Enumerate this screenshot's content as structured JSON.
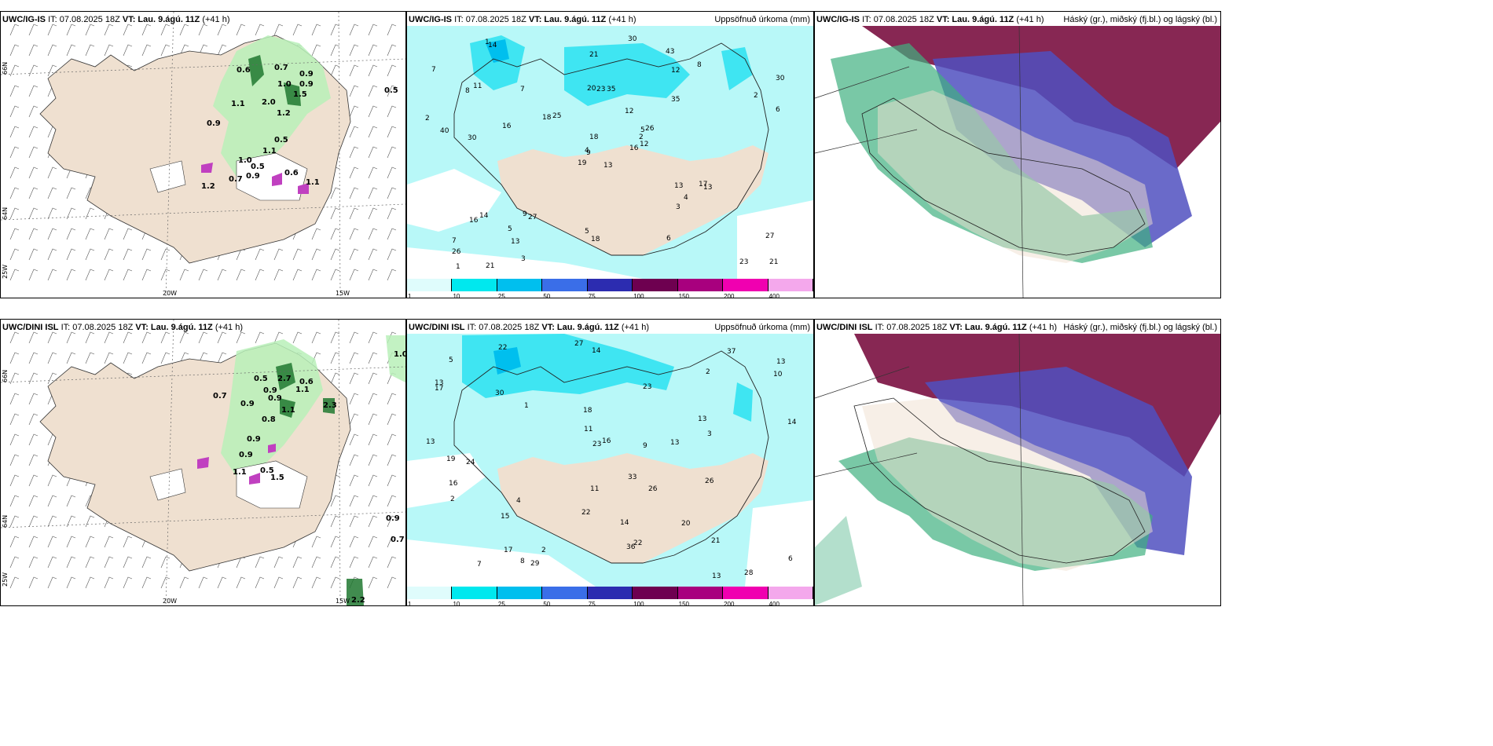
{
  "panels": [
    {
      "title_model": "UWC/IG-IS",
      "title_it": "IT: 07.08.2025 18Z",
      "title_vt_label": "VT:",
      "title_vt": "Lau. 9.ágú. 11Z",
      "title_lead": "(+41 h)",
      "right_title": ""
    },
    {
      "title_model": "UWC/IG-IS",
      "title_it": "IT: 07.08.2025 18Z",
      "title_vt_label": "VT:",
      "title_vt": "Lau. 9.ágú. 11Z",
      "title_lead": "(+41 h)",
      "right_title": "Uppsöfnuð úrkoma (mm)"
    },
    {
      "title_model": "UWC/IG-IS",
      "title_it": "IT: 07.08.2025 18Z",
      "title_vt_label": "VT:",
      "title_vt": "Lau. 9.ágú. 11Z",
      "title_lead": "(+41 h)",
      "right_title": "Háský (gr.), miðský (fj.bl.) og lágský (bl.)"
    },
    {
      "title_model": "UWC/DINI ISL",
      "title_it": "IT: 07.08.2025 18Z",
      "title_vt_label": "VT:",
      "title_vt": "Lau. 9.ágú. 11Z",
      "title_lead": "(+41 h)",
      "right_title": ""
    },
    {
      "title_model": "UWC/DINI ISL",
      "title_it": "IT: 07.08.2025 18Z",
      "title_vt_label": "VT:",
      "title_vt": "Lau. 9.ágú. 11Z",
      "title_lead": "(+41 h)",
      "right_title": "Uppsöfnuð úrkoma (mm)"
    },
    {
      "title_model": "UWC/DINI ISL",
      "title_it": "IT: 07.08.2025 18Z",
      "title_vt_label": "VT:",
      "title_vt": "Lau. 9.ágú. 11Z",
      "title_lead": "(+41 h)",
      "right_title": "Háský (gr.), miðský (fj.bl.) og lágský (bl.)"
    }
  ],
  "geo_labels": {
    "lat66": "66N",
    "lat64": "64N",
    "lon25": "25W",
    "lon20": "20W",
    "lon15": "15W"
  },
  "colorbar": {
    "ticks": [
      "1",
      "10",
      "25",
      "50",
      "75",
      "100",
      "150",
      "200",
      "400"
    ],
    "colors": [
      "#dffcfc",
      "#00e8ee",
      "#00bfee",
      "#3a6ee8",
      "#2c2cb0",
      "#6e0050",
      "#a8007e",
      "#f000b0",
      "#f4a8ec"
    ]
  },
  "colors": {
    "land": "#efe0d0",
    "sea": "#ffffff",
    "precip_light": "#b8f8f8",
    "precip_med": "#20e0f0",
    "green_light": "#b8f0b8",
    "green_dark": "#207830",
    "cloud_high": "#7a1040",
    "cloud_mid": "#5050c0",
    "cloud_low": "#40b080"
  },
  "gust_values_top": [
    "0.6",
    "0.7",
    "0.9",
    "1.0",
    "0.9",
    "1.5",
    "1.1",
    "2.0",
    "1.2",
    "0.9",
    "0.5",
    "1.1",
    "1.0",
    "0.5",
    "0.6",
    "0.7",
    "1.2",
    "1.1",
    "0.5",
    "0.9"
  ],
  "gust_values_bottom": [
    "2.7",
    "0.5",
    "0.6",
    "0.9",
    "1.1",
    "0.7",
    "0.9",
    "0.9",
    "1.1",
    "2.3",
    "0.8",
    "0.9",
    "0.9",
    "0.5",
    "1.5",
    "1.1",
    "1.0",
    "0.9",
    "0.7",
    "2.2"
  ],
  "precip_values_top": [
    "13",
    "8",
    "9",
    "7",
    "5",
    "27",
    "43",
    "35",
    "12",
    "16",
    "14",
    "21",
    "30",
    "30",
    "19",
    "35",
    "21",
    "20",
    "12",
    "14",
    "25",
    "26",
    "13",
    "23",
    "26",
    "13",
    "11",
    "21",
    "40",
    "13",
    "6",
    "4",
    "5",
    "18",
    "7",
    "8",
    "9",
    "23",
    "27",
    "17",
    "30",
    "18",
    "16",
    "3",
    "3",
    "2",
    "2",
    "1",
    "18",
    "12",
    "16",
    "2",
    "7",
    "4",
    "6",
    "5",
    "1"
  ],
  "precip_values_bottom": [
    "13",
    "14",
    "13",
    "13",
    "13",
    "28",
    "24",
    "23",
    "18",
    "37",
    "16",
    "26",
    "27",
    "17",
    "30",
    "15",
    "22",
    "19",
    "33",
    "22",
    "20",
    "21",
    "10",
    "11",
    "17",
    "23",
    "26",
    "22",
    "29",
    "36",
    "16",
    "13",
    "9",
    "7",
    "8",
    "2",
    "3",
    "5",
    "2",
    "1",
    "14",
    "13",
    "6",
    "14",
    "11",
    "4",
    "2"
  ]
}
